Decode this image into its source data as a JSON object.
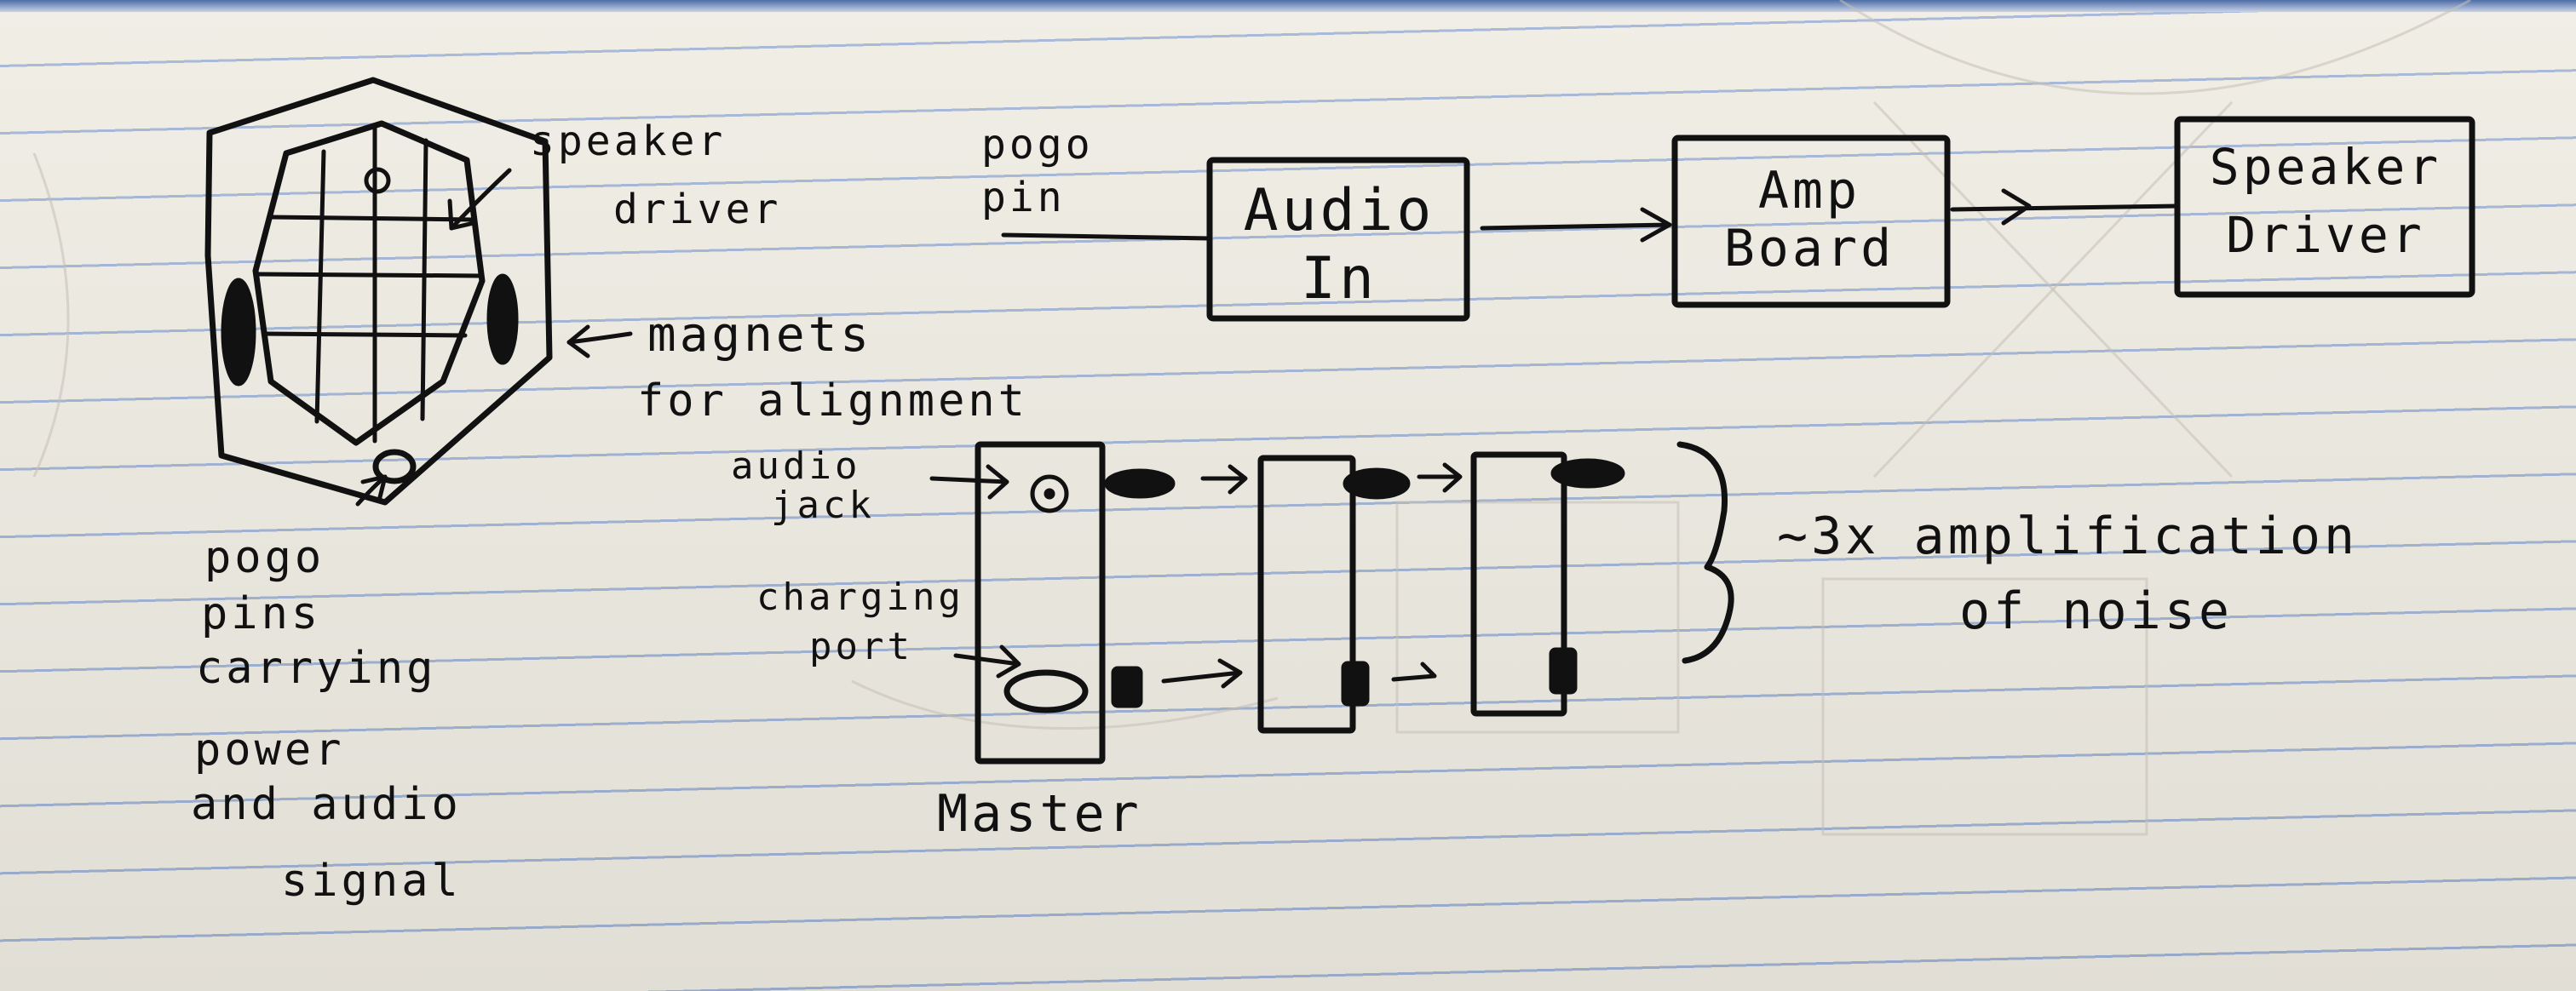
{
  "hexagon_diagram": {
    "speaker_driver_label": [
      "speaker",
      "driver"
    ],
    "magnets_label": [
      "magnets",
      "for alignment"
    ],
    "pogo_pins_label": [
      "pogo",
      "pins",
      "carrying",
      "power",
      "and audio",
      "signal"
    ]
  },
  "signal_chain": {
    "input_label": [
      "pogo",
      "pin"
    ],
    "blocks": [
      {
        "lines": [
          "Audio",
          "In"
        ]
      },
      {
        "lines": [
          "Amp",
          "Board"
        ]
      },
      {
        "lines": [
          "Speaker",
          "Driver"
        ]
      }
    ]
  },
  "daisy_chain": {
    "audio_jack_label": [
      "audio",
      "jack"
    ],
    "charging_port_label": [
      "charging",
      "port"
    ],
    "master_label": "Master",
    "note_lines": [
      "~3x amplification",
      "of noise"
    ]
  }
}
